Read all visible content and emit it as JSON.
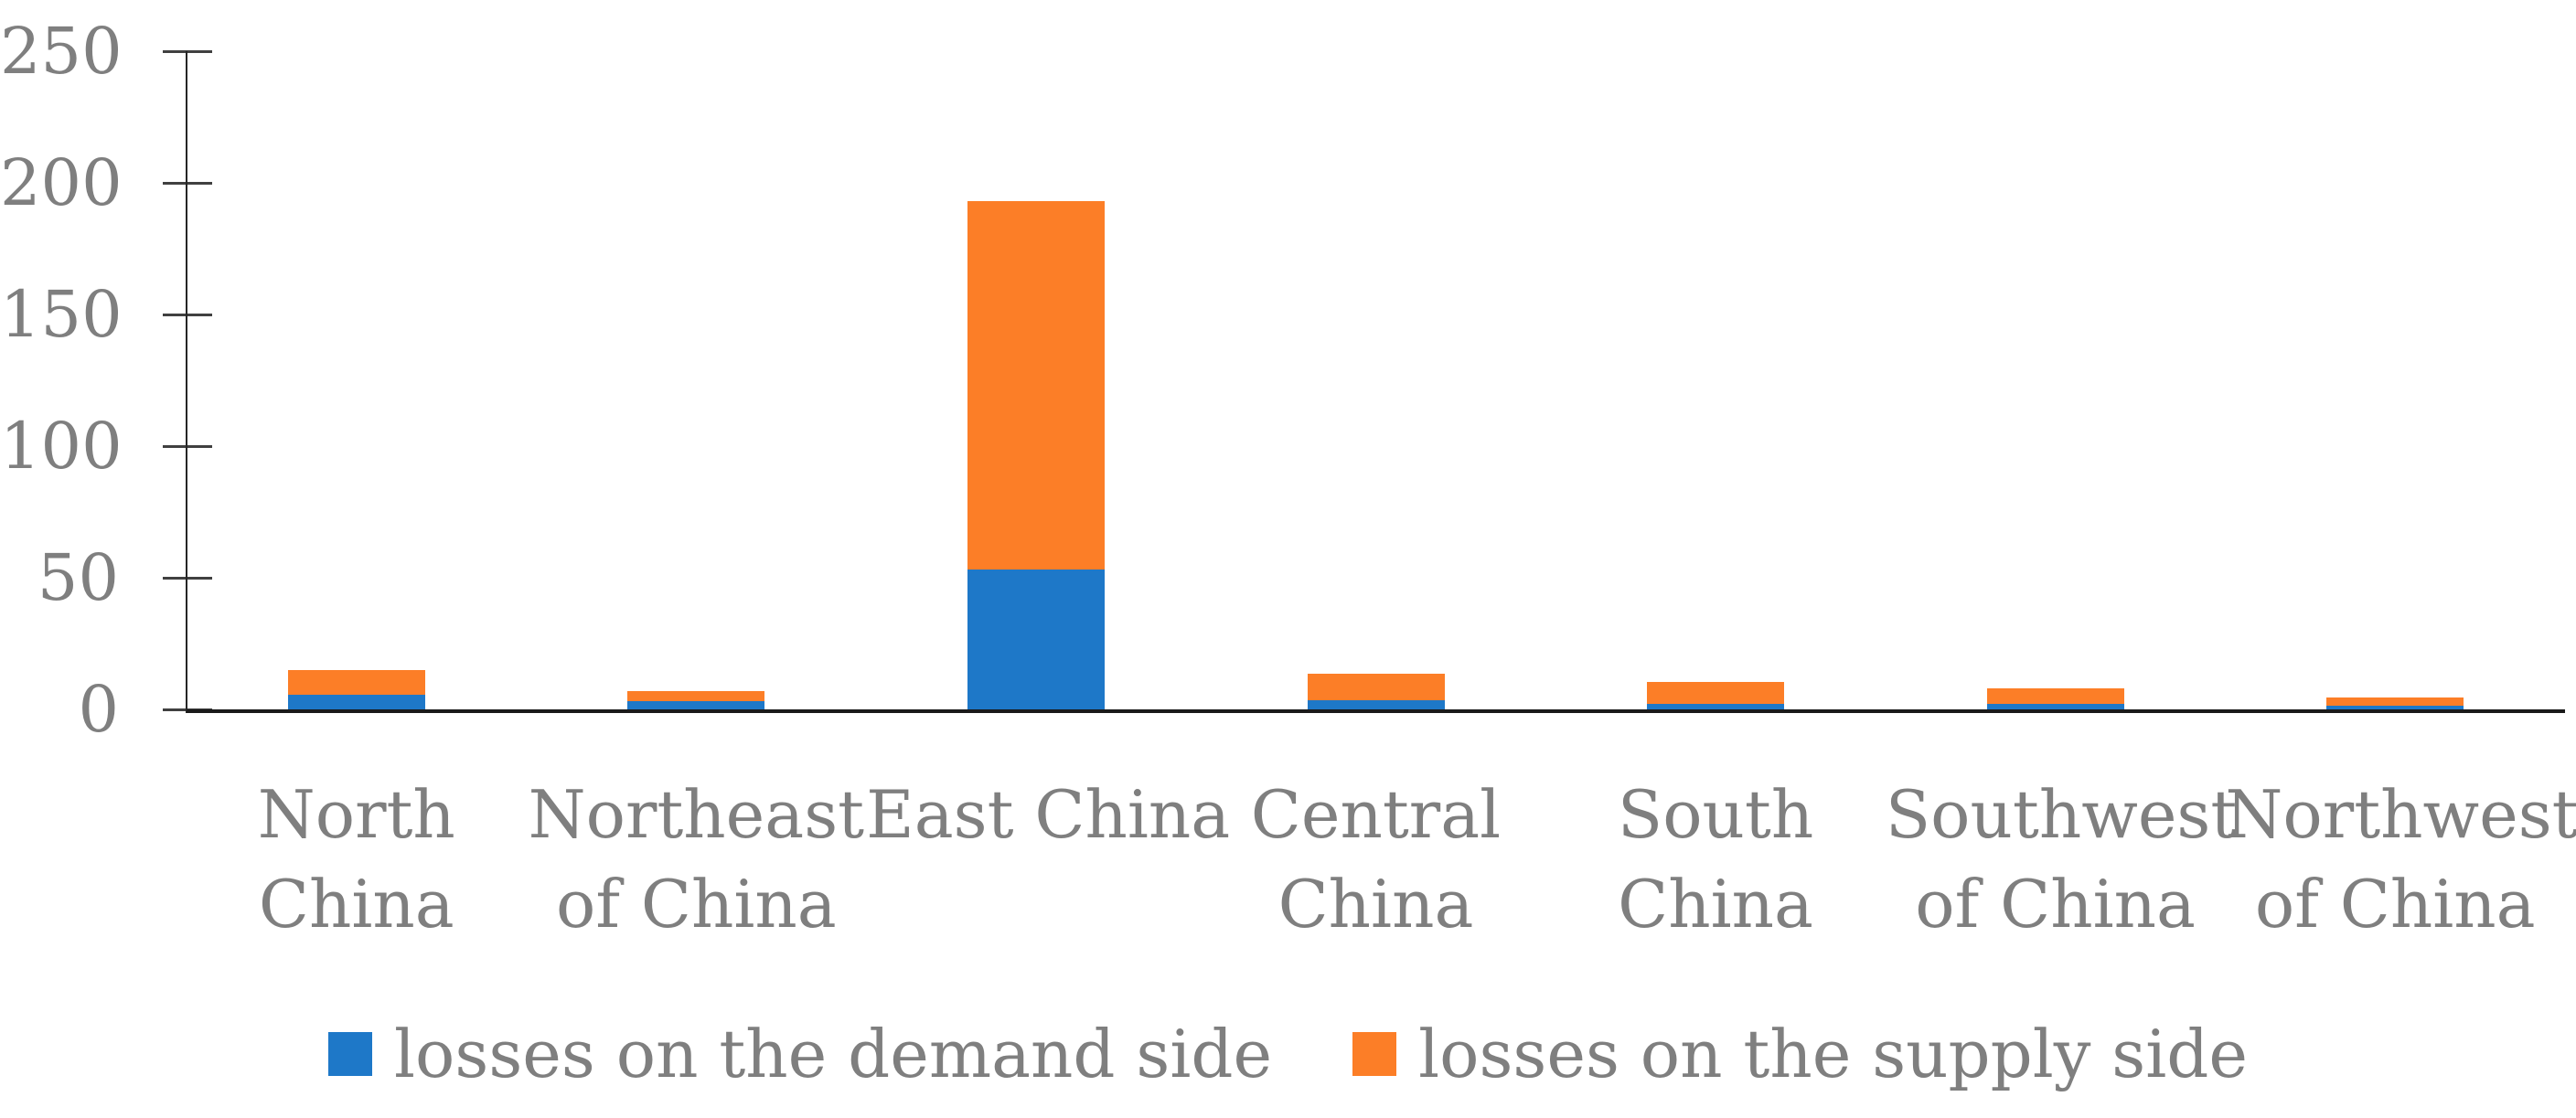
{
  "chart_data": {
    "type": "bar",
    "stacked": true,
    "title": "",
    "xlabel": "",
    "ylabel": "",
    "categories": [
      "North China",
      "Northeast of China",
      "East China",
      "Central China",
      "South China",
      "Southwest of China",
      "Northwest of China"
    ],
    "category_label_lines": [
      [
        "North",
        "China"
      ],
      [
        "Northeast",
        "of China"
      ],
      [
        "East China"
      ],
      [
        "Central",
        "China"
      ],
      [
        "South",
        "China"
      ],
      [
        "Southwest",
        "of China"
      ],
      [
        "Northwest",
        "of China"
      ]
    ],
    "series": [
      {
        "name": "losses on the demand side",
        "color": "#1E78C8",
        "values": [
          5.5,
          3,
          53,
          3.5,
          2,
          2,
          1.5
        ]
      },
      {
        "name": "losses on the supply side",
        "color": "#FC7E27",
        "values": [
          9.5,
          4,
          140,
          10,
          8.5,
          6,
          3
        ]
      }
    ],
    "ylim": [
      0,
      250
    ],
    "yticks": [
      0,
      50,
      100,
      150,
      200,
      250
    ],
    "grid": false,
    "legend_position": "bottom",
    "colors": {
      "axis_line": "#262626",
      "tick_mark": "#404040",
      "label_text": "#7f7f7f",
      "background": "#ffffff"
    }
  }
}
